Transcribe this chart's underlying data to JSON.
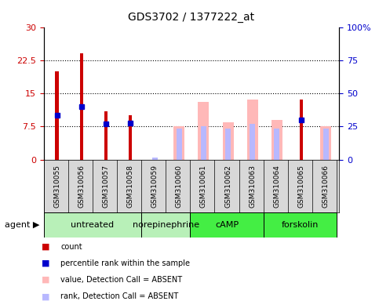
{
  "title": "GDS3702 / 1377222_at",
  "samples": [
    "GSM310055",
    "GSM310056",
    "GSM310057",
    "GSM310058",
    "GSM310059",
    "GSM310060",
    "GSM310061",
    "GSM310062",
    "GSM310063",
    "GSM310064",
    "GSM310065",
    "GSM310066"
  ],
  "red_count": [
    20.0,
    24.0,
    11.0,
    10.0,
    0.0,
    0.0,
    0.0,
    0.0,
    0.0,
    0.0,
    13.5,
    0.0
  ],
  "blue_pct_left": [
    10.0,
    12.0,
    8.0,
    8.2,
    0.0,
    0.0,
    0.0,
    0.0,
    0.0,
    0.0,
    9.0,
    0.0
  ],
  "pink_value": [
    0.0,
    0.0,
    0.0,
    0.0,
    0.0,
    7.5,
    13.0,
    8.5,
    13.5,
    9.0,
    0.0,
    7.5
  ],
  "lightblue_rank": [
    0.0,
    0.0,
    0.0,
    0.0,
    0.5,
    7.0,
    7.5,
    7.0,
    8.0,
    7.0,
    0.0,
    7.0
  ],
  "agents": [
    {
      "label": "untreated",
      "start": 0,
      "end": 4,
      "color": "#b8f0b8"
    },
    {
      "label": "norepinephrine",
      "start": 4,
      "end": 6,
      "color": "#b8f0b8"
    },
    {
      "label": "cAMP",
      "start": 6,
      "end": 9,
      "color": "#44ee44"
    },
    {
      "label": "forskolin",
      "start": 9,
      "end": 12,
      "color": "#44ee44"
    }
  ],
  "ylim_left": [
    0,
    30
  ],
  "ylim_right": [
    0,
    100
  ],
  "yticks_left": [
    0,
    7.5,
    15,
    22.5,
    30
  ],
  "yticks_right": [
    0,
    25,
    50,
    75,
    100
  ],
  "ytick_labels_left": [
    "0",
    "7.5",
    "15",
    "22.5",
    "30"
  ],
  "ytick_labels_right": [
    "0",
    "25",
    "50",
    "75",
    "100%"
  ],
  "hlines": [
    7.5,
    15,
    22.5
  ],
  "red_color": "#cc0000",
  "blue_color": "#0000cc",
  "pink_color": "#ffb8b8",
  "lightblue_color": "#b8b8ff",
  "tick_color_left": "#cc0000",
  "tick_color_right": "#0000cc",
  "bg_color": "#ffffff",
  "xticklabel_bg": "#d8d8d8"
}
